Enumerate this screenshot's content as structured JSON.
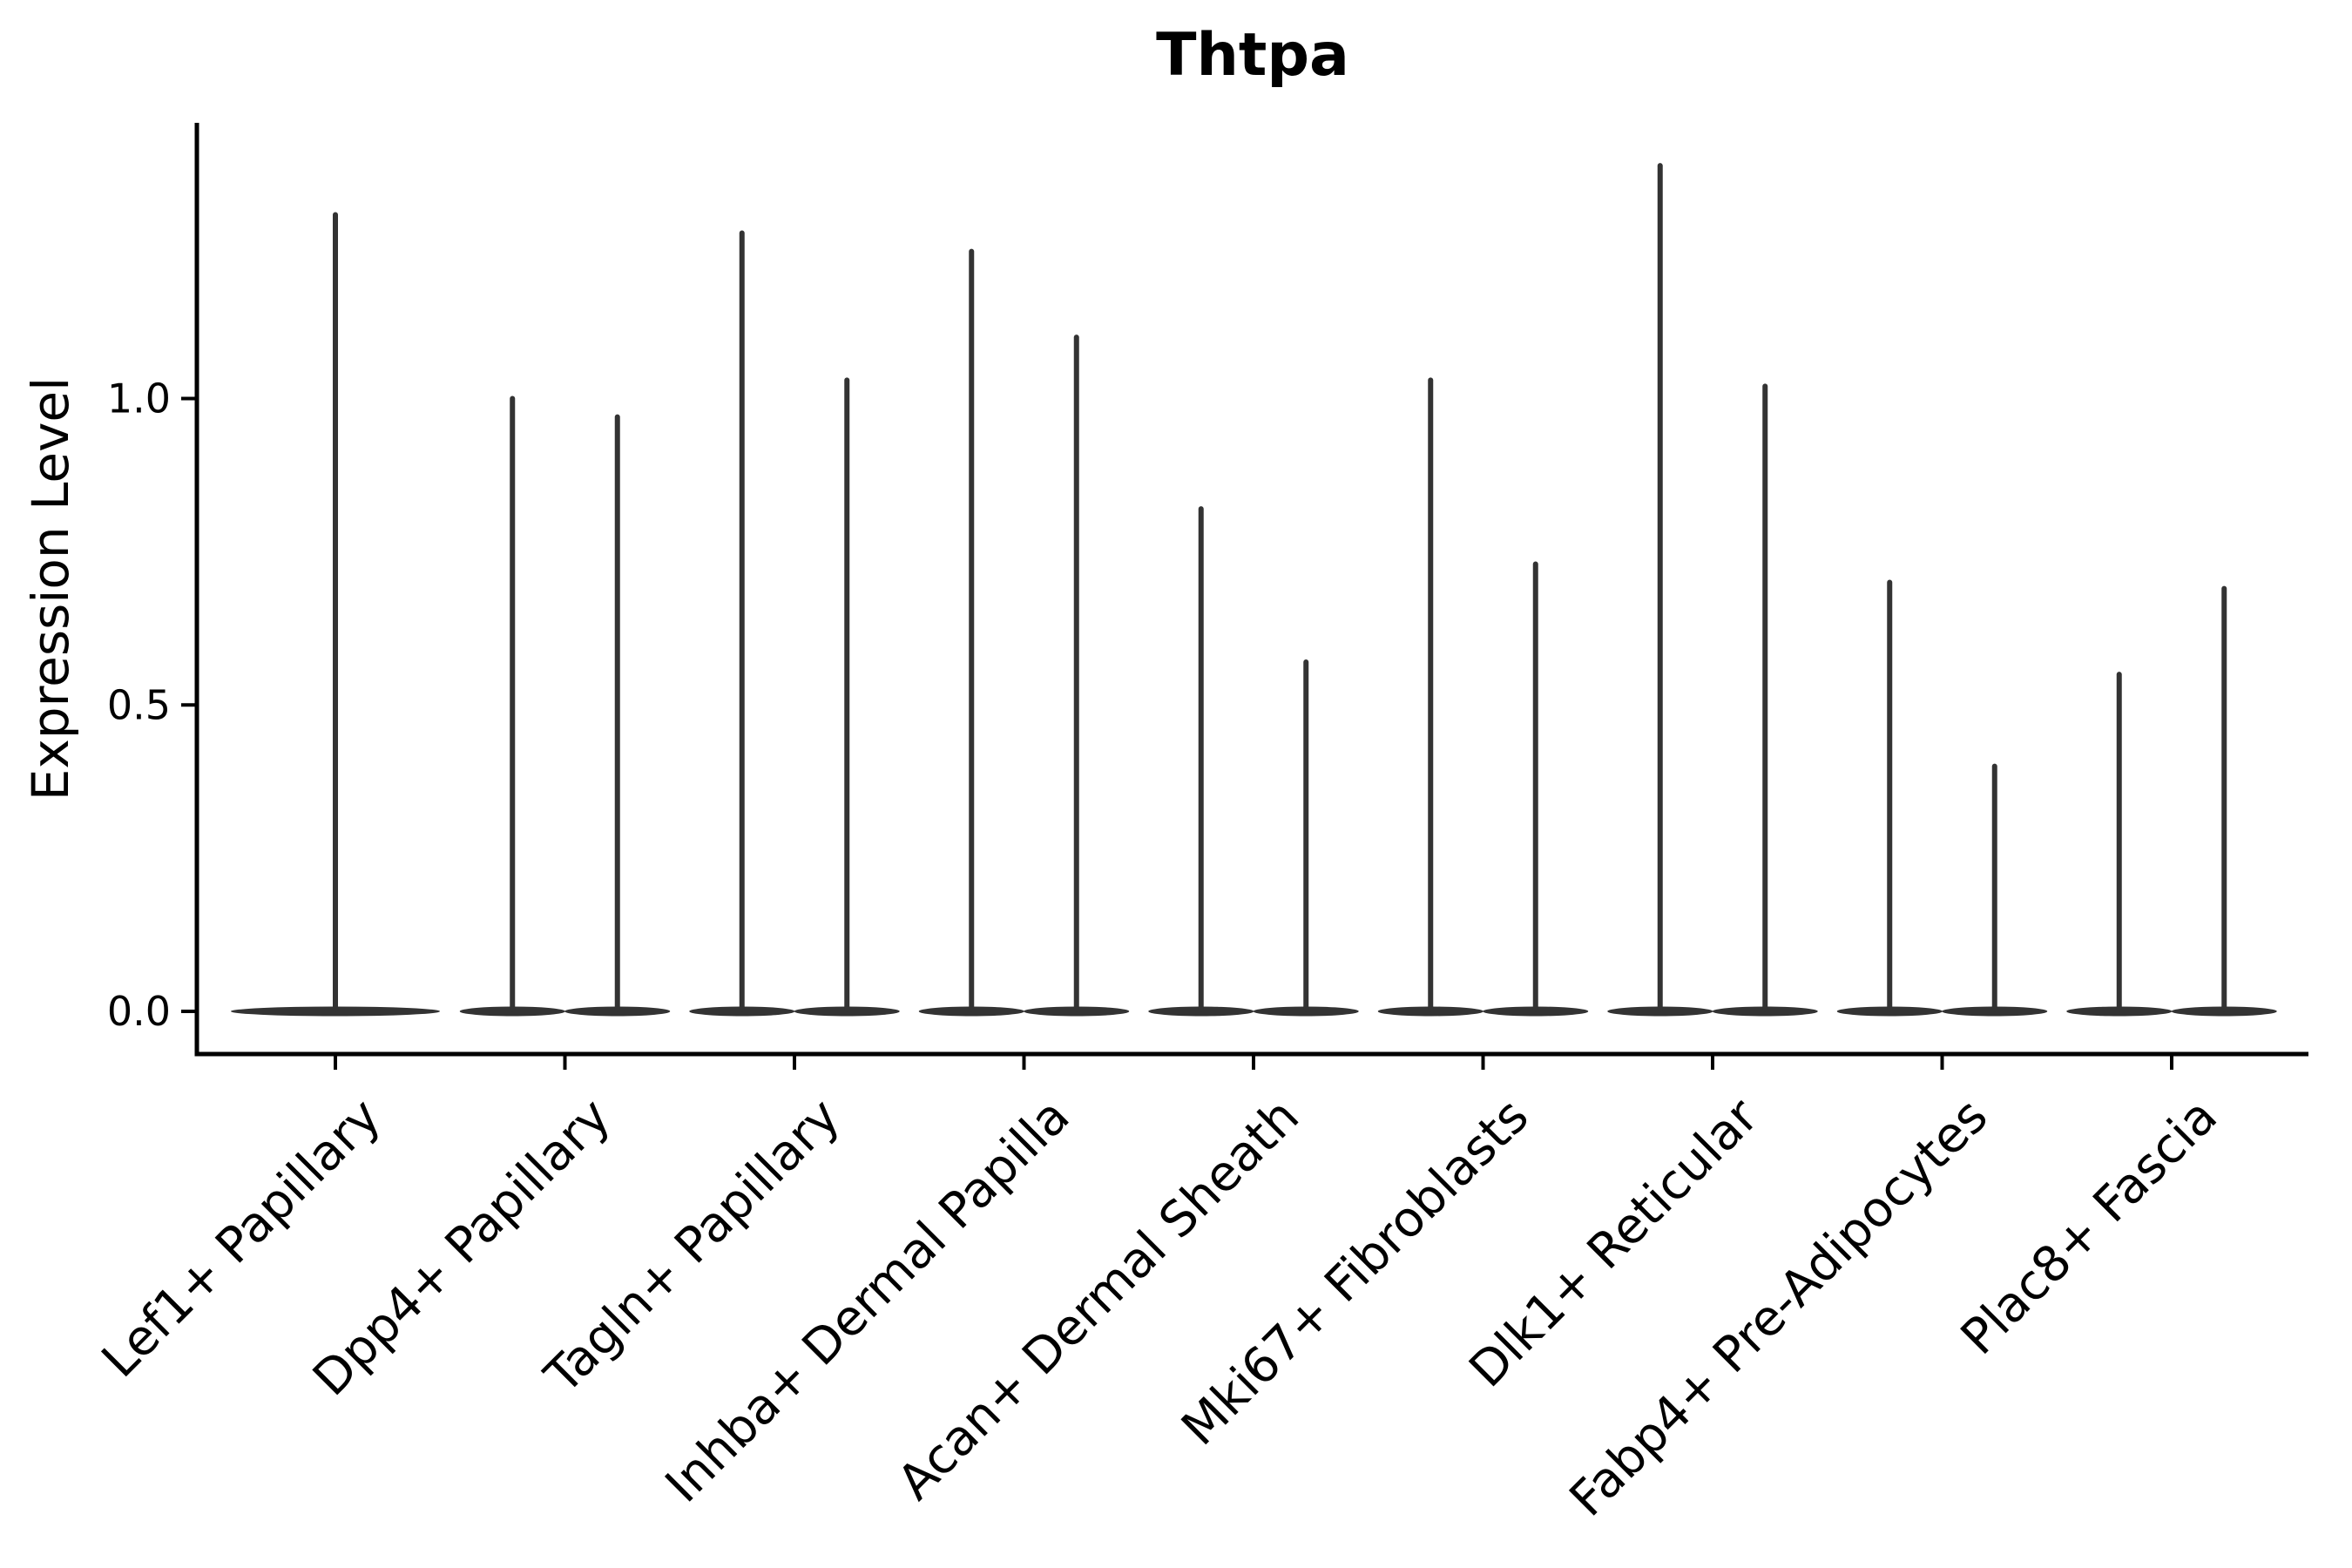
{
  "chart_data": {
    "type": "violin",
    "title": "Thtpa",
    "ylabel": "Expression Level",
    "xlabel": "",
    "grid": false,
    "legend": null,
    "background": "#ffffff",
    "violin_color": "#333333",
    "axis_color": "#000000",
    "density_concentrated_at_zero": true,
    "ylim": [
      -0.07,
      1.45
    ],
    "yticks": [
      {
        "label": "0.0",
        "value": 0.0
      },
      {
        "label": "0.5",
        "value": 0.5
      },
      {
        "label": "1.0",
        "value": 1.0
      }
    ],
    "categories": [
      "Lef1+ Papillary",
      "Dpp4+ Papillary",
      "Tagln+ Papillary",
      "Inhba+ Dermal Papilla",
      "Acan+ Dermal Sheath",
      "Mki67+ Fibroblasts",
      "Dlk1+ Reticular",
      "Fabp4+ Pre-Adipocytes",
      "Plac8+ Fascia"
    ],
    "violins": [
      {
        "category": "Lef1+ Papillary",
        "maxima": [
          1.3
        ]
      },
      {
        "category": "Dpp4+ Papillary",
        "maxima": [
          1.0,
          0.97
        ]
      },
      {
        "category": "Tagln+ Papillary",
        "maxima": [
          1.27,
          1.03
        ]
      },
      {
        "category": "Inhba+ Dermal Papilla",
        "maxima": [
          1.24,
          1.1
        ]
      },
      {
        "category": "Acan+ Dermal Sheath",
        "maxima": [
          0.82,
          0.57
        ]
      },
      {
        "category": "Mki67+ Fibroblasts",
        "maxima": [
          1.03,
          0.73
        ]
      },
      {
        "category": "Dlk1+ Reticular",
        "maxima": [
          1.38,
          1.02
        ]
      },
      {
        "category": "Fabp4+ Pre-Adipocytes",
        "maxima": [
          0.7,
          0.4
        ]
      },
      {
        "category": "Plac8+ Fascia",
        "maxima": [
          0.55,
          0.69
        ]
      }
    ]
  }
}
